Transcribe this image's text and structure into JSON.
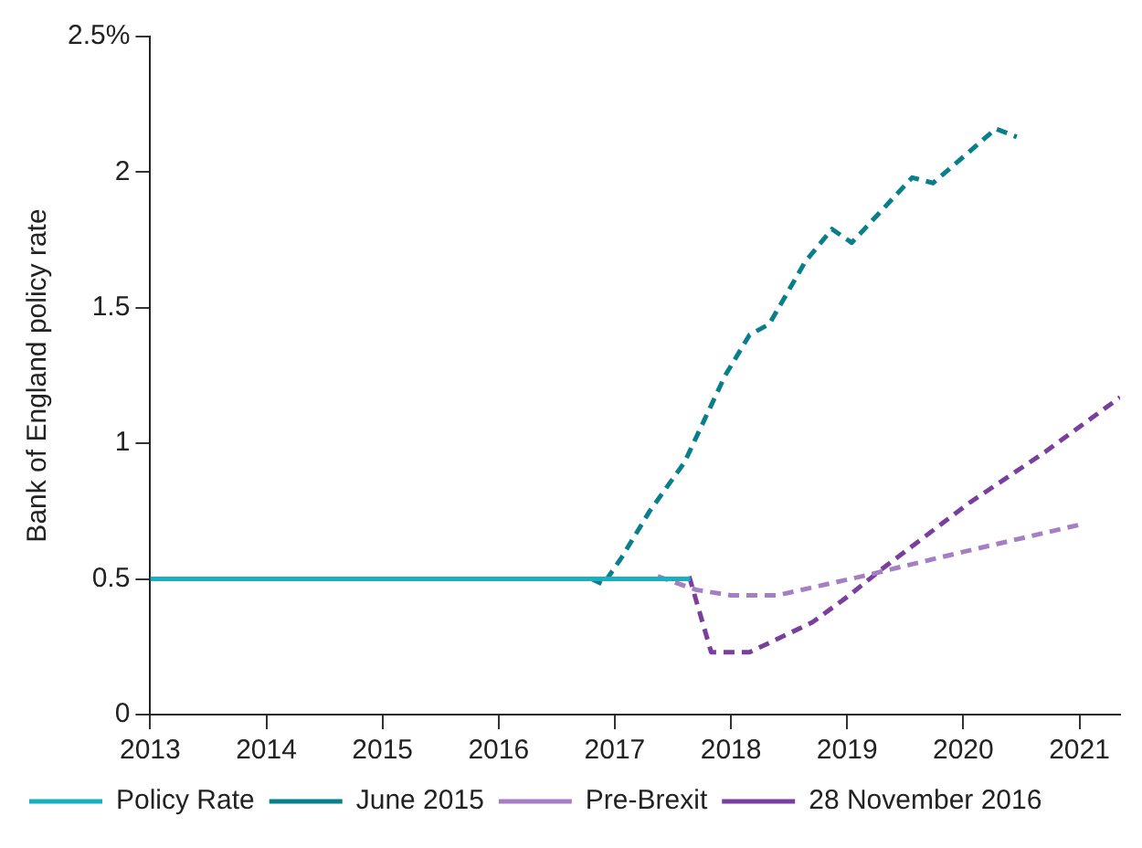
{
  "chart_data": {
    "type": "line",
    "ylabel": "Bank of England policy rate",
    "xlim": [
      2013,
      2021.35
    ],
    "xticks": [
      2013,
      2014,
      2015,
      2016,
      2017,
      2018,
      2019,
      2020,
      2021
    ],
    "ylim": [
      0,
      2.5
    ],
    "yticks": [
      0,
      0.5,
      1,
      1.5,
      2,
      {
        "value": 2.5,
        "label": "2.5%"
      }
    ],
    "grid": false,
    "legend": "bottom left",
    "marker": "none",
    "series": [
      {
        "name": "Policy Rate",
        "color": "#1aafbf",
        "line_style": "solid",
        "x": [
          2013,
          2017.65
        ],
        "values": [
          0.5,
          0.5
        ]
      },
      {
        "name": "June 2015",
        "color": "#0a7f8c",
        "line_style": "dashed",
        "x": [
          2016.8,
          2016.9,
          2017.06,
          2017.3,
          2017.6,
          2017.95,
          2018.16,
          2018.33,
          2018.64,
          2018.87,
          2019.04,
          2019.56,
          2019.74,
          2020.28,
          2020.46
        ],
        "values": [
          0.5,
          0.48,
          0.58,
          0.75,
          0.93,
          1.25,
          1.4,
          1.44,
          1.67,
          1.79,
          1.74,
          1.98,
          1.96,
          2.16,
          2.13
        ]
      },
      {
        "name": "Pre-Brexit",
        "color": "#a57fc2",
        "line_style": "dashed",
        "x": [
          2017.37,
          2017.7,
          2018.0,
          2018.4,
          2019.13,
          2020,
          2021.0
        ],
        "values": [
          0.51,
          0.46,
          0.44,
          0.44,
          0.51,
          0.6,
          0.7
        ]
      },
      {
        "name": "28 November 2016",
        "color": "#7a3e9e",
        "line_style": "dashed",
        "x": [
          2017.64,
          2017.83,
          2018.16,
          2018.7,
          2019.02,
          2019.28,
          2020.05,
          2020.71,
          2021.35
        ],
        "values": [
          0.51,
          0.23,
          0.23,
          0.34,
          0.44,
          0.53,
          0.78,
          0.97,
          1.17
        ]
      }
    ]
  }
}
